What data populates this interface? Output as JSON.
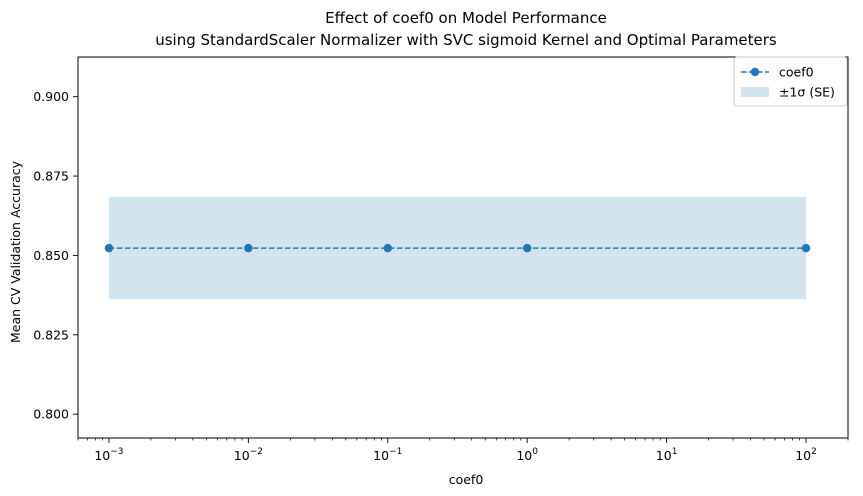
{
  "chart_data": {
    "type": "line",
    "title": "Effect of coef0 on Model Performance",
    "subtitle": "using StandardScaler Normalizer with SVC sigmoid Kernel and Optimal Parameters",
    "xlabel": "coef0",
    "ylabel": "Mean CV Validation Accuracy",
    "xscale": "log",
    "xlim": [
      0.0006,
      200
    ],
    "ylim": [
      0.7925,
      0.9125
    ],
    "xticks": [
      {
        "value": 0.001,
        "base": "10",
        "exp": "−3"
      },
      {
        "value": 0.01,
        "base": "10",
        "exp": "−2"
      },
      {
        "value": 0.1,
        "base": "10",
        "exp": "−1"
      },
      {
        "value": 1,
        "base": "10",
        "exp": "0"
      },
      {
        "value": 10,
        "base": "10",
        "exp": "1"
      },
      {
        "value": 100,
        "base": "10",
        "exp": "2"
      }
    ],
    "yticks": [
      {
        "value": 0.8,
        "label": "0.800"
      },
      {
        "value": 0.825,
        "label": "0.825"
      },
      {
        "value": 0.85,
        "label": "0.850"
      },
      {
        "value": 0.875,
        "label": "0.875"
      },
      {
        "value": 0.9,
        "label": "0.900"
      }
    ],
    "grid": false,
    "legend_position": "top-right",
    "series": [
      {
        "name": "coef0",
        "x": [
          0.001,
          0.01,
          0.1,
          1,
          100
        ],
        "y": [
          0.8523,
          0.8523,
          0.8523,
          0.8523,
          0.8523
        ],
        "style": "dashed line with circle markers",
        "color": "#1f77b4"
      }
    ],
    "band": {
      "name": "±1σ (SE)",
      "x": [
        0.001,
        100
      ],
      "lower": 0.8362,
      "upper": 0.8684,
      "color": "#1f77b4",
      "opacity": 0.2
    }
  }
}
